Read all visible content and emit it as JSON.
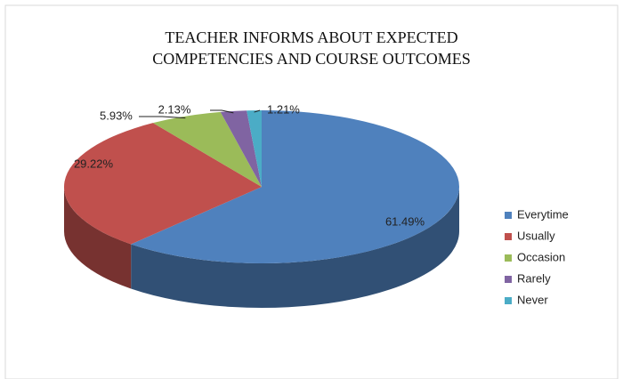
{
  "chart_data": {
    "type": "pie3d",
    "title": [
      "TEACHER INFORMS ABOUT EXPECTED",
      "COMPETENCIES AND COURSE OUTCOMES"
    ],
    "categories": [
      "Everytime",
      "Usually",
      "Occasion",
      "Rarely",
      "Never"
    ],
    "values": [
      61.49,
      29.22,
      5.93,
      2.13,
      1.21
    ],
    "value_labels": [
      "61.49%",
      "29.22%",
      "5.93%",
      "2.13%",
      "1.21%"
    ],
    "colors": [
      "#4f81bd",
      "#c0504d",
      "#9bbb59",
      "#8064a2",
      "#4bacc6"
    ],
    "legend": "right"
  }
}
